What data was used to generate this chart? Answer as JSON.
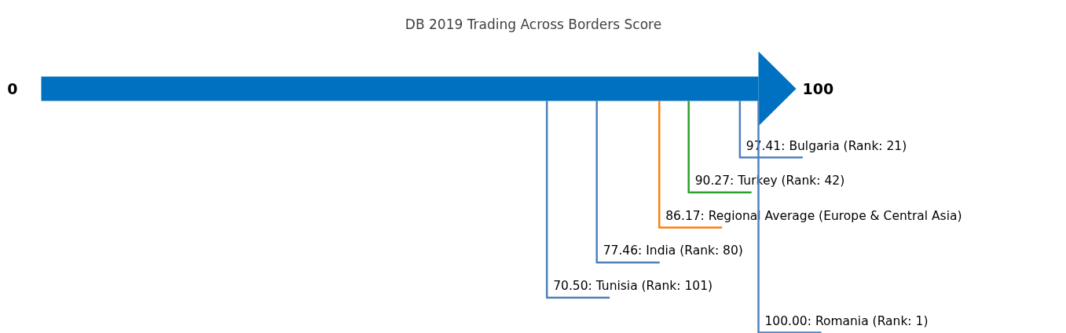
{
  "chart_data": {
    "type": "other",
    "title": "DB 2019 Trading Across Borders Score",
    "values": [
      97.41,
      90.27,
      86.17,
      77.46,
      70.5,
      100
    ],
    "value_labels": [
      "97.41: Bulgaria (Rank: 21)",
      "90.27: Turkey (Rank: 42)",
      "86.17: Regional Average (Europe & Central Asia)",
      "77.46: India (Rank: 80)",
      "70.50: Tunisia (Rank: 101)",
      "100.00: Romania (Rank: 1)"
    ],
    "colors": [
      "#4f81bd",
      "#2ca02c",
      "#ff7f0e",
      "#4f81bd",
      "#4f81bd",
      "#4f81bd"
    ],
    "annotations": [
      "0",
      "100"
    ]
  }
}
